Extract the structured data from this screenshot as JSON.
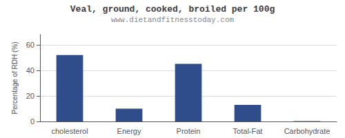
{
  "chart_data": {
    "type": "bar",
    "title": "Veal, ground, cooked, broiled per 100g",
    "subtitle": "www.dietandfitnesstoday.com",
    "categories": [
      "cholesterol",
      "Energy",
      "Protein",
      "Total-Fat",
      "Carbohydrate"
    ],
    "values": [
      52,
      10,
      45,
      13,
      0.3
    ],
    "color": "#2e4d8a",
    "ylabel": "Percentage of RDH (%)",
    "ylim": [
      0,
      68
    ],
    "yticks": [
      0,
      20,
      40,
      60
    ],
    "grid": true
  }
}
